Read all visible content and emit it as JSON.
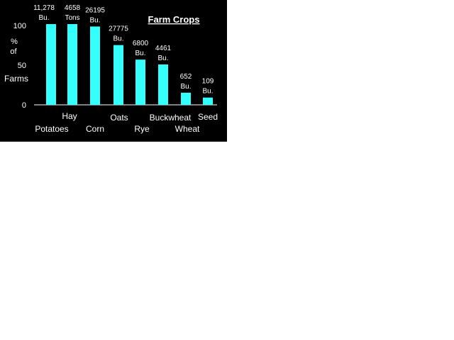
{
  "chart_data": {
    "type": "bar",
    "title": "Farm Crops",
    "ylabel_lines": [
      "%",
      "of",
      "Farms"
    ],
    "ylim": [
      0,
      100
    ],
    "yticks": [
      "0",
      "50",
      "100"
    ],
    "grid": false,
    "legend": "none",
    "bar_color": "#33ffff",
    "background": "#000000",
    "text_color": "#ffffff",
    "categories": [
      "Potatoes",
      "Hay",
      "Corn",
      "Oats",
      "Rye",
      "Buckwheat",
      "Wheat",
      "Seed"
    ],
    "values": [
      100,
      100,
      97,
      74,
      56,
      50,
      15,
      9
    ],
    "data_labels": [
      [
        "11,278",
        "Bu."
      ],
      [
        "4658",
        "Tons"
      ],
      [
        "26195",
        "Bu."
      ],
      [
        "27775",
        "Bu."
      ],
      [
        "6800",
        "Bu."
      ],
      [
        "4461",
        "Bu."
      ],
      [
        "652",
        "Bu."
      ],
      [
        "109",
        "Bu."
      ]
    ]
  }
}
